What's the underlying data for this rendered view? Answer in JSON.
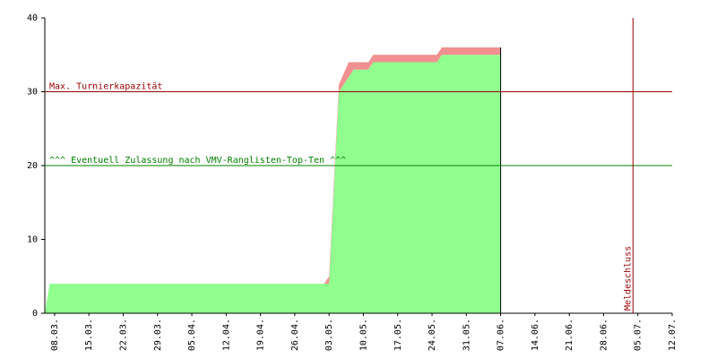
{
  "chart_data": {
    "type": "stacked_area",
    "x": [
      "06.03.",
      "07.03.",
      "02.05.",
      "03.05.",
      "05.05.",
      "07.05.",
      "08.05.",
      "11.05.",
      "12.05.",
      "25.05.",
      "26.05.",
      "07.06."
    ],
    "series": [
      {
        "color": "#90ff90",
        "values": [
          0,
          4,
          4,
          4,
          30,
          32,
          33,
          33,
          34,
          34,
          35,
          35
        ]
      },
      {
        "color": "#f09090",
        "values": [
          0,
          0,
          0,
          1,
          1,
          2,
          1,
          1,
          1,
          1,
          1,
          1
        ]
      }
    ],
    "xlim": [
      "06.03.",
      "12.07."
    ],
    "xticks": [
      "08.03.",
      "15.03.",
      "22.03.",
      "29.03.",
      "05.04.",
      "12.04.",
      "19.04.",
      "26.04.",
      "03.05.",
      "10.05.",
      "17.05.",
      "24.05.",
      "31.05.",
      "07.06.",
      "14.06.",
      "21.06.",
      "28.06.",
      "05.07.",
      "12.07."
    ],
    "ylim": [
      0,
      40
    ],
    "yticks": [
      0,
      10,
      20,
      30,
      40
    ],
    "hlines": [
      {
        "value": 30,
        "label": "Max. Turnierkapazität",
        "color": "#990000"
      },
      {
        "value": 20,
        "label": "^^^ Eventuell Zulassung nach VMV-Ranglisten-Top-Ten ^^^",
        "color": "#008000"
      }
    ],
    "vlines": [
      {
        "x": "04.07.",
        "label": "Meldeschluss",
        "color": "#990000"
      }
    ]
  }
}
